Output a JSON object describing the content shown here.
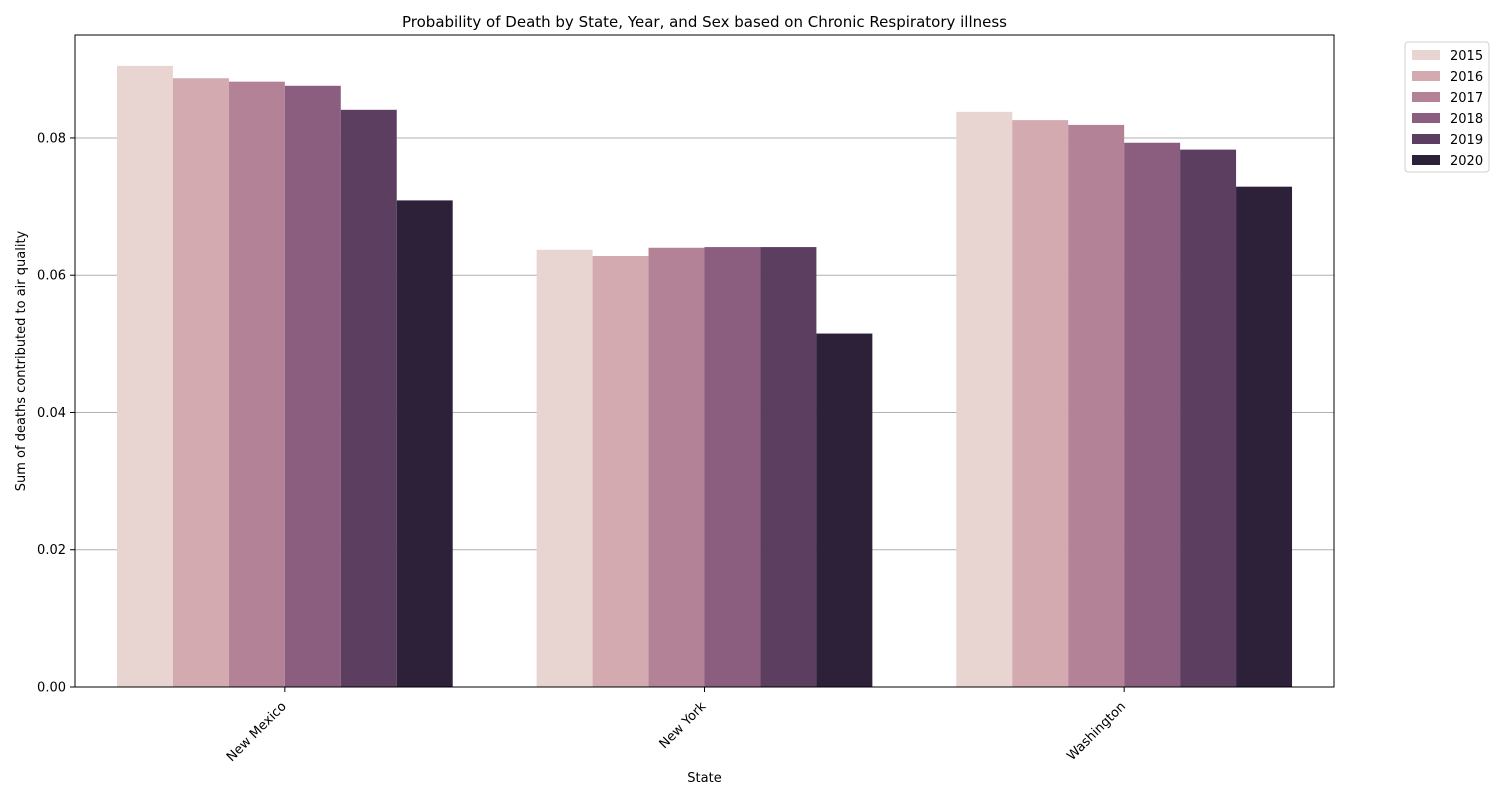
{
  "chart_data": {
    "type": "bar",
    "title": "Probability of Death by State, Year, and Sex based on Chronic Respiratory illness",
    "xlabel": "State",
    "ylabel": "Sum of deaths contributed to air quality",
    "categories": [
      "New Mexico",
      "New York",
      "Washington"
    ],
    "ylim": [
      0,
      0.095
    ],
    "yticks": [
      "0.00",
      "0.02",
      "0.04",
      "0.06",
      "0.08"
    ],
    "grid": "y",
    "legend_position": "outside-top-right",
    "series": [
      {
        "name": "2015",
        "color": "#e8d4d0",
        "values": [
          0.0905,
          0.0637,
          0.0838
        ]
      },
      {
        "name": "2016",
        "color": "#d3aab0",
        "values": [
          0.0887,
          0.0628,
          0.0826
        ]
      },
      {
        "name": "2017",
        "color": "#b48296",
        "values": [
          0.0882,
          0.064,
          0.0819
        ]
      },
      {
        "name": "2018",
        "color": "#8b5e80",
        "values": [
          0.0876,
          0.0641,
          0.0793
        ]
      },
      {
        "name": "2019",
        "color": "#5c3e61",
        "values": [
          0.0841,
          0.0641,
          0.0783
        ]
      },
      {
        "name": "2020",
        "color": "#2d213a",
        "values": [
          0.0709,
          0.0515,
          0.0729
        ]
      }
    ]
  }
}
